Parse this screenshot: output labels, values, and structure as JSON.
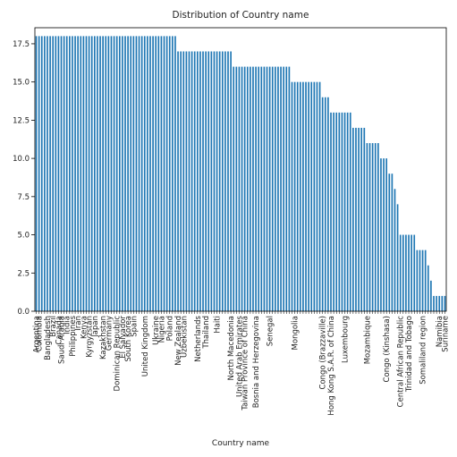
{
  "chart_data": {
    "type": "bar",
    "title": "Distribution of Country name",
    "x_label": "Country name",
    "categories": [
      "Argentina",
      "Colombia",
      null,
      null,
      "Bangladesh",
      null,
      "Brazil",
      null,
      "Canada",
      "Saudi Arabia",
      null,
      "India",
      null,
      "Philippines",
      null,
      "Iran",
      null,
      "Kenya",
      null,
      "Kyrgyzstan",
      null,
      "Japan",
      null,
      null,
      "Kazakhstan",
      null,
      "Germany",
      null,
      null,
      "Dominican Republic",
      null,
      "El Salvador",
      null,
      "South Korea",
      null,
      "Spain",
      null,
      null,
      null,
      "United Kingdom",
      null,
      null,
      null,
      "Ukraine",
      null,
      "Nigeria",
      null,
      null,
      "Poland",
      null,
      null,
      "New Zealand",
      null,
      "Uzbekistan",
      null,
      null,
      null,
      null,
      "Netherlands",
      null,
      null,
      "Thailand",
      null,
      null,
      null,
      "Haiti",
      null,
      null,
      null,
      null,
      "North Macedonia",
      null,
      null,
      "United Arab Emirates",
      null,
      "Taiwan Province of China",
      null,
      null,
      null,
      "Bosnia and Herzegovina",
      null,
      null,
      null,
      null,
      "Senegal",
      null,
      null,
      null,
      null,
      null,
      null,
      null,
      null,
      "Mongolia",
      null,
      null,
      null,
      null,
      null,
      null,
      null,
      null,
      null,
      "Congo (Brazzaville)",
      null,
      null,
      "Hong Kong S.A.R. of China",
      null,
      null,
      null,
      null,
      "Luxembourg",
      null,
      null,
      null,
      null,
      null,
      null,
      null,
      "Mozambique",
      null,
      null,
      null,
      null,
      null,
      null,
      "Congo (Kinshasa)",
      null,
      null,
      null,
      null,
      "Central African Republic",
      null,
      null,
      "Trinidad and Tobago",
      null,
      null,
      null,
      null,
      "Somaliland region",
      null,
      null,
      null,
      null,
      null,
      "Namibia",
      null,
      "Suriname"
    ],
    "values": [
      18,
      18,
      18,
      18,
      18,
      18,
      18,
      18,
      18,
      18,
      18,
      18,
      18,
      18,
      18,
      18,
      18,
      18,
      18,
      18,
      18,
      18,
      18,
      18,
      18,
      18,
      18,
      18,
      18,
      18,
      18,
      18,
      18,
      18,
      18,
      18,
      18,
      18,
      18,
      18,
      18,
      18,
      18,
      18,
      18,
      18,
      18,
      18,
      18,
      18,
      18,
      17,
      17,
      17,
      17,
      17,
      17,
      17,
      17,
      17,
      17,
      17,
      17,
      17,
      17,
      17,
      17,
      17,
      17,
      17,
      17,
      16,
      16,
      16,
      16,
      16,
      16,
      16,
      16,
      16,
      16,
      16,
      16,
      16,
      16,
      16,
      16,
      16,
      16,
      16,
      16,
      16,
      15,
      15,
      15,
      15,
      15,
      15,
      15,
      15,
      15,
      15,
      15,
      14,
      14,
      14,
      13,
      13,
      13,
      13,
      13,
      13,
      13,
      13,
      12,
      12,
      12,
      12,
      12,
      11,
      11,
      11,
      11,
      11,
      10,
      10,
      10,
      9,
      9,
      8,
      7,
      5,
      5,
      5,
      5,
      5,
      5,
      4,
      4,
      4,
      4,
      3,
      2,
      1,
      1,
      1,
      1,
      1
    ],
    "color": "#1f77b4",
    "ylim": [
      0,
      18.55
    ],
    "yticks": [
      {
        "value": 0,
        "label": "0.0"
      },
      {
        "value": 2.5,
        "label": "2.5"
      },
      {
        "value": 5,
        "label": "5.0"
      },
      {
        "value": 7.5,
        "label": "7.5"
      },
      {
        "value": 10,
        "label": "10.0"
      },
      {
        "value": 12.5,
        "label": "12.5"
      },
      {
        "value": 15,
        "label": "15.0"
      },
      {
        "value": 17.5,
        "label": "17.5"
      }
    ],
    "grid": false
  }
}
